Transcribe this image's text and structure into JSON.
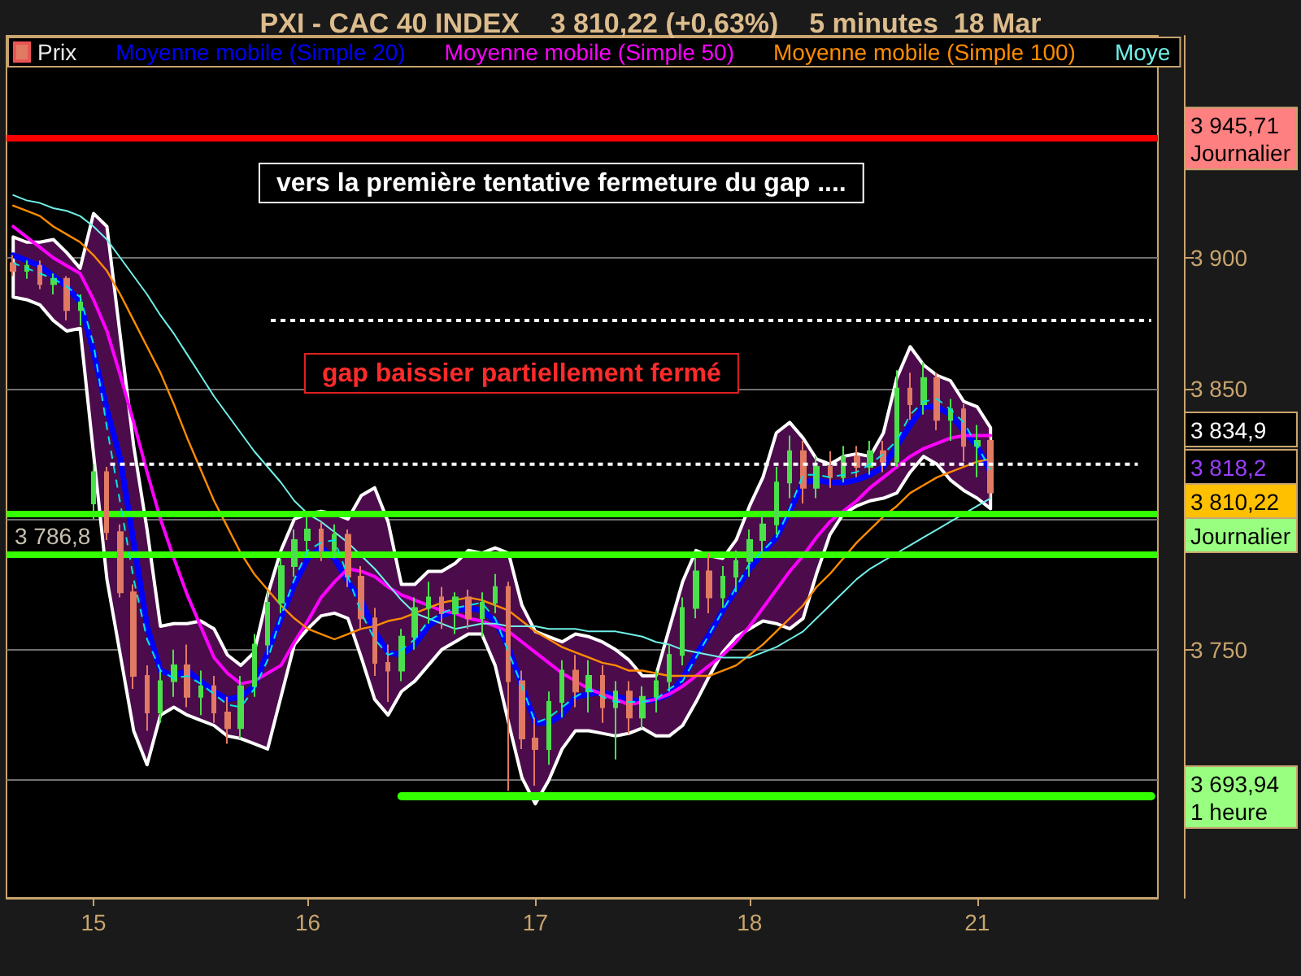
{
  "chart_data": {
    "type": "candlestick",
    "title": "PXI - CAC 40 INDEX    3 810,22 (+0,63%)    5 minutes  18 Mar",
    "categories": [
      null,
      null,
      null,
      null,
      null,
      null,
      "15",
      null,
      null,
      null,
      null,
      null,
      null,
      null,
      null,
      null,
      null,
      null,
      null,
      null,
      null,
      null,
      "16",
      null,
      null,
      null,
      null,
      null,
      null,
      null,
      null,
      null,
      null,
      null,
      null,
      null,
      null,
      null,
      null,
      "17",
      null,
      null,
      null,
      null,
      null,
      null,
      null,
      null,
      null,
      null,
      null,
      null,
      null,
      null,
      null,
      "18",
      null,
      null,
      null,
      null,
      null,
      null,
      null,
      null,
      null,
      null,
      null,
      null,
      null,
      null,
      null,
      null,
      "21",
      null,
      null,
      null,
      null,
      null,
      null,
      null,
      null,
      null,
      null,
      null,
      null,
      null
    ],
    "ylim": [
      3655,
      3985
    ],
    "yticks": [
      {
        "value": 3700,
        "label": null
      },
      {
        "value": 3750,
        "label": "3 750"
      },
      {
        "value": 3800,
        "label": null
      },
      {
        "value": 3850,
        "label": "3 850"
      },
      {
        "value": 3900,
        "label": "3 900"
      }
    ],
    "grid": "y",
    "legend": "top left",
    "series": [
      {
        "name": "Prix",
        "ohlc": [
          [
            3898,
            3901,
            3893,
            3895
          ],
          [
            3895,
            3899,
            3892,
            3897
          ],
          [
            3897,
            3899,
            3888,
            3890
          ],
          [
            3890,
            3894,
            3886,
            3892
          ],
          [
            3892,
            3893,
            3876,
            3880
          ],
          [
            3880,
            3886,
            3874,
            3883
          ],
          [
            3806,
            3821,
            3800,
            3818
          ],
          [
            3818,
            3820,
            3792,
            3795
          ],
          [
            3795,
            3798,
            3770,
            3772
          ],
          [
            3772,
            3775,
            3735,
            3740
          ],
          [
            3740,
            3744,
            3719,
            3726
          ],
          [
            3726,
            3742,
            3722,
            3738
          ],
          [
            3738,
            3750,
            3732,
            3744
          ],
          [
            3744,
            3752,
            3728,
            3732
          ],
          [
            3732,
            3742,
            3725,
            3736
          ],
          [
            3736,
            3740,
            3722,
            3726
          ],
          [
            3726,
            3732,
            3714,
            3720
          ],
          [
            3720,
            3740,
            3716,
            3736
          ],
          [
            3736,
            3756,
            3732,
            3752
          ],
          [
            3752,
            3772,
            3748,
            3768
          ],
          [
            3768,
            3785,
            3764,
            3782
          ],
          [
            3782,
            3796,
            3778,
            3792
          ],
          [
            3792,
            3801,
            3786,
            3796
          ],
          [
            3796,
            3799,
            3784,
            3788
          ],
          [
            3788,
            3798,
            3785,
            3794
          ],
          [
            3794,
            3796,
            3774,
            3778
          ],
          [
            3778,
            3782,
            3758,
            3762
          ],
          [
            3762,
            3766,
            3740,
            3745
          ],
          [
            3745,
            3752,
            3730,
            3742
          ],
          [
            3742,
            3758,
            3738,
            3755
          ],
          [
            3755,
            3770,
            3750,
            3766
          ],
          [
            3766,
            3776,
            3760,
            3770
          ],
          [
            3770,
            3774,
            3758,
            3764
          ],
          [
            3764,
            3772,
            3756,
            3770
          ],
          [
            3770,
            3773,
            3758,
            3762
          ],
          [
            3762,
            3772,
            3755,
            3768
          ],
          [
            3768,
            3779,
            3764,
            3774
          ],
          [
            3774,
            3776,
            3696,
            3738
          ],
          [
            3738,
            3742,
            3712,
            3716
          ],
          [
            3716,
            3724,
            3698,
            3712
          ],
          [
            3712,
            3734,
            3706,
            3730
          ],
          [
            3730,
            3746,
            3724,
            3742
          ],
          [
            3742,
            3748,
            3728,
            3734
          ],
          [
            3734,
            3746,
            3726,
            3740
          ],
          [
            3740,
            3744,
            3722,
            3728
          ],
          [
            3728,
            3738,
            3708,
            3734
          ],
          [
            3734,
            3738,
            3718,
            3724
          ],
          [
            3724,
            3736,
            3720,
            3732
          ],
          [
            3732,
            3742,
            3726,
            3738
          ],
          [
            3738,
            3752,
            3734,
            3748
          ],
          [
            3748,
            3770,
            3744,
            3766
          ],
          [
            3766,
            3786,
            3762,
            3780
          ],
          [
            3780,
            3787,
            3764,
            3770
          ],
          [
            3770,
            3782,
            3766,
            3778
          ],
          [
            3778,
            3788,
            3772,
            3784
          ],
          [
            3784,
            3796,
            3778,
            3792
          ],
          [
            3792,
            3802,
            3786,
            3798
          ],
          [
            3798,
            3820,
            3794,
            3814
          ],
          [
            3814,
            3832,
            3808,
            3826
          ],
          [
            3826,
            3830,
            3806,
            3812
          ],
          [
            3812,
            3824,
            3808,
            3820
          ],
          [
            3820,
            3826,
            3812,
            3816
          ],
          [
            3816,
            3828,
            3814,
            3824
          ],
          [
            3824,
            3828,
            3816,
            3820
          ],
          [
            3820,
            3830,
            3817,
            3826
          ],
          [
            3826,
            3830,
            3818,
            3822
          ],
          [
            3822,
            3857,
            3820,
            3850
          ],
          [
            3850,
            3856,
            3838,
            3844
          ],
          [
            3844,
            3860,
            3840,
            3854
          ],
          [
            3854,
            3856,
            3834,
            3838
          ],
          [
            3838,
            3846,
            3830,
            3842
          ],
          [
            3842,
            3844,
            3822,
            3828
          ],
          [
            3828,
            3836,
            3816,
            3830
          ],
          [
            3830,
            3832,
            3808,
            3810.22
          ],
          null,
          null,
          null,
          null,
          null,
          null,
          null,
          null,
          null,
          null,
          null,
          null
        ],
        "colors": [
          "#e07a62",
          "#4be04b",
          "#e07a62",
          "#4be04b",
          "#e07a62",
          "#4be04b",
          "#4be04b",
          "#e07a62",
          "#e07a62",
          "#e07a62",
          "#e07a62",
          "#4be04b",
          "#4be04b",
          "#e07a62",
          "#4be04b",
          "#e07a62",
          "#e07a62",
          "#4be04b",
          "#4be04b",
          "#4be04b",
          "#4be04b",
          "#4be04b",
          "#4be04b",
          "#e07a62",
          "#4be04b",
          "#e07a62",
          "#e07a62",
          "#e07a62",
          "#e07a62",
          "#4be04b",
          "#4be04b",
          "#4be04b",
          "#e07a62",
          "#4be04b",
          "#e07a62",
          "#4be04b",
          "#4be04b",
          "#e07a62",
          "#e07a62",
          "#e07a62",
          "#4be04b",
          "#4be04b",
          "#e07a62",
          "#4be04b",
          "#e07a62",
          "#4be04b",
          "#e07a62",
          "#4be04b",
          "#4be04b",
          "#4be04b",
          "#4be04b",
          "#4be04b",
          "#e07a62",
          "#4be04b",
          "#4be04b",
          "#4be04b",
          "#4be04b",
          "#4be04b",
          "#4be04b",
          "#e07a62",
          "#4be04b",
          "#e07a62",
          "#4be04b",
          "#e07a62",
          "#4be04b",
          "#e07a62",
          "#4be04b",
          "#e07a62",
          "#4be04b",
          "#e07a62",
          "#4be04b",
          "#e07a62",
          "#4be04b",
          "#e07a62",
          null,
          null,
          null,
          null,
          null,
          null,
          null,
          null,
          null,
          null,
          null,
          null
        ]
      },
      {
        "type": "line",
        "name": "Moyenne mobile (Simple 20)",
        "color": "#0000ff",
        "values": [
          3901,
          3899,
          3897,
          3893,
          3889,
          3883,
          3864,
          3842,
          3823,
          3791,
          3759,
          3742,
          3740,
          3742,
          3738,
          3734,
          3731,
          3732,
          3736,
          3749,
          3762,
          3775,
          3785,
          3789,
          3785,
          3776,
          3769,
          3757,
          3749,
          3748,
          3752,
          3759,
          3763,
          3765,
          3766,
          3765,
          3761,
          3751,
          3736,
          3722,
          3722,
          3725,
          3732,
          3733,
          3734,
          3732,
          3731,
          3730,
          3731,
          3733,
          3739,
          3748,
          3756,
          3765,
          3773,
          3781,
          3787,
          3793,
          3803,
          3814,
          3815,
          3814,
          3814,
          3815,
          3817,
          3820,
          3828,
          3836,
          3843,
          3843,
          3840,
          3834,
          3828,
          3818,
          null,
          null,
          null,
          null,
          null,
          null,
          null,
          null,
          null,
          null,
          null,
          null
        ],
        "upper": [
          3908,
          3906,
          3906,
          3907,
          3902,
          3896,
          3917,
          3912,
          3870,
          3828,
          3796,
          3759,
          3760,
          3760,
          3761,
          3758,
          3748,
          3744,
          3749,
          3771,
          3788,
          3800,
          3802,
          3803,
          3802,
          3800,
          3809,
          3812,
          3799,
          3775,
          3775,
          3780,
          3780,
          3783,
          3788,
          3787,
          3789,
          3787,
          3767,
          3757,
          3755,
          3753,
          3756,
          3755,
          3753,
          3750,
          3746,
          3740,
          3740,
          3758,
          3776,
          3788,
          3786,
          3785,
          3792,
          3805,
          3816,
          3833,
          3837,
          3831,
          3823,
          3821,
          3824,
          3825,
          3824,
          3833,
          3854,
          3866,
          3859,
          3855,
          3853,
          3845,
          3843,
          3835,
          null,
          null,
          null,
          null,
          null,
          null,
          null,
          null,
          null,
          null,
          null,
          null
        ],
        "lower": [
          3885,
          3884,
          3882,
          3876,
          3872,
          3873,
          3825,
          3777,
          3748,
          3719,
          3706,
          3725,
          3728,
          3725,
          3723,
          3721,
          3717,
          3716,
          3714,
          3712,
          3732,
          3752,
          3758,
          3763,
          3764,
          3762,
          3747,
          3731,
          3725,
          3734,
          3738,
          3744,
          3750,
          3753,
          3756,
          3756,
          3744,
          3722,
          3701,
          3691,
          3700,
          3712,
          3719,
          3719,
          3718,
          3717,
          3718,
          3720,
          3717,
          3717,
          3721,
          3730,
          3740,
          3749,
          3755,
          3758,
          3761,
          3760,
          3758,
          3762,
          3779,
          3794,
          3802,
          3805,
          3807,
          3808,
          3810,
          3818,
          3824,
          3821,
          3815,
          3811,
          3808,
          3804,
          null,
          null,
          null,
          null,
          null,
          null,
          null,
          null,
          null,
          null,
          null,
          null
        ]
      },
      {
        "type": "line",
        "name": "Moyenne mobile (Simple 50)",
        "color": "#ff00ff",
        "values": [
          3912,
          3908,
          3904,
          3900,
          3897,
          3894,
          3884,
          3872,
          3855,
          3837,
          3818,
          3800,
          3785,
          3771,
          3759,
          3747,
          3741,
          3737,
          3738,
          3741,
          3744,
          3753,
          3761,
          3770,
          3776,
          3781,
          3780,
          3778,
          3774,
          3771,
          3769,
          3767,
          3765,
          3764,
          3762,
          3761,
          3759,
          3757,
          3753,
          3749,
          3745,
          3741,
          3738,
          3735,
          3733,
          3731,
          3729,
          3730,
          3731,
          3733,
          3736,
          3740,
          3744,
          3748,
          3753,
          3759,
          3766,
          3773,
          3780,
          3786,
          3793,
          3799,
          3803,
          3807,
          3812,
          3816,
          3820,
          3824,
          3827,
          3829,
          3831,
          3832,
          3832,
          3832,
          null,
          null,
          null,
          null,
          null,
          null,
          null,
          null,
          null,
          null,
          null,
          null
        ]
      },
      {
        "type": "line",
        "name": "Moyenne mobile (Simple 100)",
        "color": "#ff8c00",
        "values": [
          3920,
          3918,
          3916,
          3912,
          3909,
          3906,
          3901,
          3895,
          3886,
          3876,
          3866,
          3856,
          3844,
          3831,
          3819,
          3807,
          3797,
          3787,
          3779,
          3773,
          3767,
          3762,
          3758,
          3756,
          3754,
          3756,
          3758,
          3759,
          3761,
          3762,
          3764,
          3766,
          3768,
          3769,
          3770,
          3769,
          3767,
          3765,
          3761,
          3757,
          3754,
          3751,
          3749,
          3747,
          3745,
          3744,
          3742,
          3742,
          3741,
          3740,
          3740,
          3740,
          3740,
          3742,
          3744,
          3748,
          3752,
          3757,
          3762,
          3767,
          3774,
          3779,
          3785,
          3791,
          3796,
          3801,
          3805,
          3810,
          3813,
          3816,
          3818,
          3820,
          3822,
          3823,
          null,
          null,
          null,
          null,
          null,
          null,
          null,
          null,
          null,
          null,
          null,
          null
        ]
      },
      {
        "type": "line",
        "name": "Moye",
        "color": "#70f0e8",
        "values": [
          3924,
          3922,
          3921,
          3919,
          3918,
          3916,
          3912,
          3907,
          3900,
          3893,
          3886,
          3878,
          3871,
          3863,
          3855,
          3847,
          3840,
          3833,
          3826,
          3820,
          3814,
          3807,
          3802,
          3799,
          3795,
          3791,
          3786,
          3781,
          3775,
          3769,
          3764,
          3762,
          3760,
          3758,
          3759,
          3760,
          3760,
          3759,
          3759,
          3759,
          3758,
          3758,
          3758,
          3757,
          3757,
          3757,
          3756,
          3755,
          3753,
          3752,
          3750,
          3749,
          3748,
          3747,
          3747,
          3747,
          3749,
          3751,
          3754,
          3757,
          3762,
          3767,
          3772,
          3777,
          3781,
          3784,
          3787,
          3790,
          3793,
          3796,
          3799,
          3802,
          3805,
          3808,
          null,
          null,
          null,
          null,
          null,
          null,
          null,
          null,
          null,
          null,
          null,
          null
        ]
      },
      {
        "type": "line",
        "color": "#00e5e5",
        "line_style": "dashed",
        "values": [
          3898,
          3896,
          3894,
          3892,
          3889,
          3885,
          3867,
          3835,
          3806,
          3777,
          3754,
          3742,
          3739,
          3740,
          3737,
          3733,
          3729,
          3728,
          3735,
          3746,
          3763,
          3777,
          3788,
          3791,
          3792,
          3778,
          3764,
          3754,
          3748,
          3750,
          3754,
          3761,
          3764,
          3766,
          3767,
          3768,
          3762,
          3749,
          3736,
          3722,
          3724,
          3728,
          3732,
          3735,
          3732,
          3730,
          3730,
          3730,
          3731,
          3735,
          3738,
          3747,
          3756,
          3765,
          3774,
          3783,
          3788,
          3793,
          3804,
          3817,
          3817,
          3816,
          3817,
          3818,
          3821,
          3825,
          3830,
          3840,
          3845,
          3846,
          3842,
          3837,
          3828,
          3819,
          null,
          null,
          null,
          null,
          null,
          null,
          null,
          null,
          null,
          null,
          null,
          null
        ]
      },
      {
        "type": "line",
        "color": "#ffffff",
        "line_style": "dotted",
        "values": [
          null,
          null,
          null,
          null,
          null,
          null,
          null,
          null,
          null,
          null,
          null,
          null,
          null,
          null,
          null,
          null,
          null,
          null,
          null,
          3876,
          3876,
          3876,
          3876,
          3876,
          3876,
          3876,
          3876,
          3876,
          3876,
          3876,
          3876,
          3876,
          3876,
          3876,
          3876,
          3876,
          3876,
          3876,
          3876,
          3876,
          3876,
          3876,
          3876,
          3876,
          3876,
          3876,
          3876,
          3876,
          3876,
          3876,
          3876,
          3876,
          3876,
          3876,
          3876,
          3876,
          3876,
          3876,
          3876,
          3876,
          3876,
          3876,
          3876,
          3876,
          3876,
          3876,
          3876,
          3876,
          3876,
          3876,
          3876,
          3876,
          3876,
          3876,
          3876,
          3876,
          3876,
          3876,
          3876,
          3876,
          3876,
          3876,
          3876,
          3876,
          3876,
          3876
        ]
      },
      {
        "type": "line",
        "color": "#ffffff",
        "line_style": "dotted",
        "values": [
          null,
          null,
          null,
          null,
          null,
          null,
          null,
          3821,
          3821,
          3821,
          3821,
          3821,
          3821,
          3821,
          3821,
          3821,
          3821,
          3821,
          3821,
          3821,
          3821,
          3821,
          3821,
          3821,
          3821,
          3821,
          3821,
          3821,
          3821,
          3821,
          3821,
          3821,
          3821,
          3821,
          3821,
          3821,
          3821,
          3821,
          3821,
          3821,
          3821,
          3821,
          3821,
          3821,
          3821,
          3821,
          3821,
          3821,
          3821,
          3821,
          3821,
          3821,
          3821,
          3821,
          3821,
          3821,
          3821,
          3821,
          3821,
          3821,
          3821,
          3821,
          3821,
          3821,
          3821,
          3821,
          3821,
          3821,
          3821,
          3821,
          3821,
          3821,
          3821,
          3821,
          3821,
          3821,
          3821,
          3821,
          3821,
          3821,
          3821,
          3821,
          3821,
          3821,
          3821,
          null
        ]
      },
      {
        "type": "line",
        "color": "#33ff00",
        "values": [
          null,
          null,
          null,
          null,
          null,
          null,
          null,
          null,
          null,
          null,
          null,
          null,
          null,
          null,
          null,
          null,
          null,
          null,
          null,
          null,
          null,
          null,
          null,
          null,
          null,
          null,
          null,
          null,
          null,
          3693.94,
          3693.94,
          3693.94,
          3693.94,
          3693.94,
          3693.94,
          3693.94,
          3693.94,
          3693.94,
          3693.94,
          3693.94,
          3693.94,
          3693.94,
          3693.94,
          3693.94,
          3693.94,
          3693.94,
          3693.94,
          3693.94,
          3693.94,
          3693.94,
          3693.94,
          3693.94,
          3693.94,
          3693.94,
          3693.94,
          3693.94,
          3693.94,
          3693.94,
          3693.94,
          3693.94,
          3693.94,
          3693.94,
          3693.94,
          3693.94,
          3693.94,
          3693.94,
          3693.94,
          3693.94,
          3693.94,
          3693.94,
          3693.94,
          3693.94,
          3693.94,
          3693.94,
          3693.94,
          3693.94,
          3693.94,
          3693.94,
          3693.94,
          3693.94,
          3693.94,
          3693.94,
          3693.94,
          3693.94,
          3693.94,
          3693.94
        ]
      }
    ],
    "ref_lines": [
      {
        "axis": "y",
        "value": 3945.71,
        "label": "3 945,71\nJournalier",
        "color": "#ff0000"
      },
      {
        "axis": "y",
        "value": 3802,
        "label": "Journalier",
        "color": "#33ff00"
      },
      {
        "axis": "y",
        "value": 3786.8,
        "label": "3 786,8",
        "color": "#33ff00"
      }
    ],
    "annotations": [
      "vers la première tentative fermeture du gap ....",
      "gap baissier partiellement fermé",
      "3 834,9",
      "3 818,2",
      "3 810,22",
      "3 693,94\n1 heure"
    ]
  }
}
